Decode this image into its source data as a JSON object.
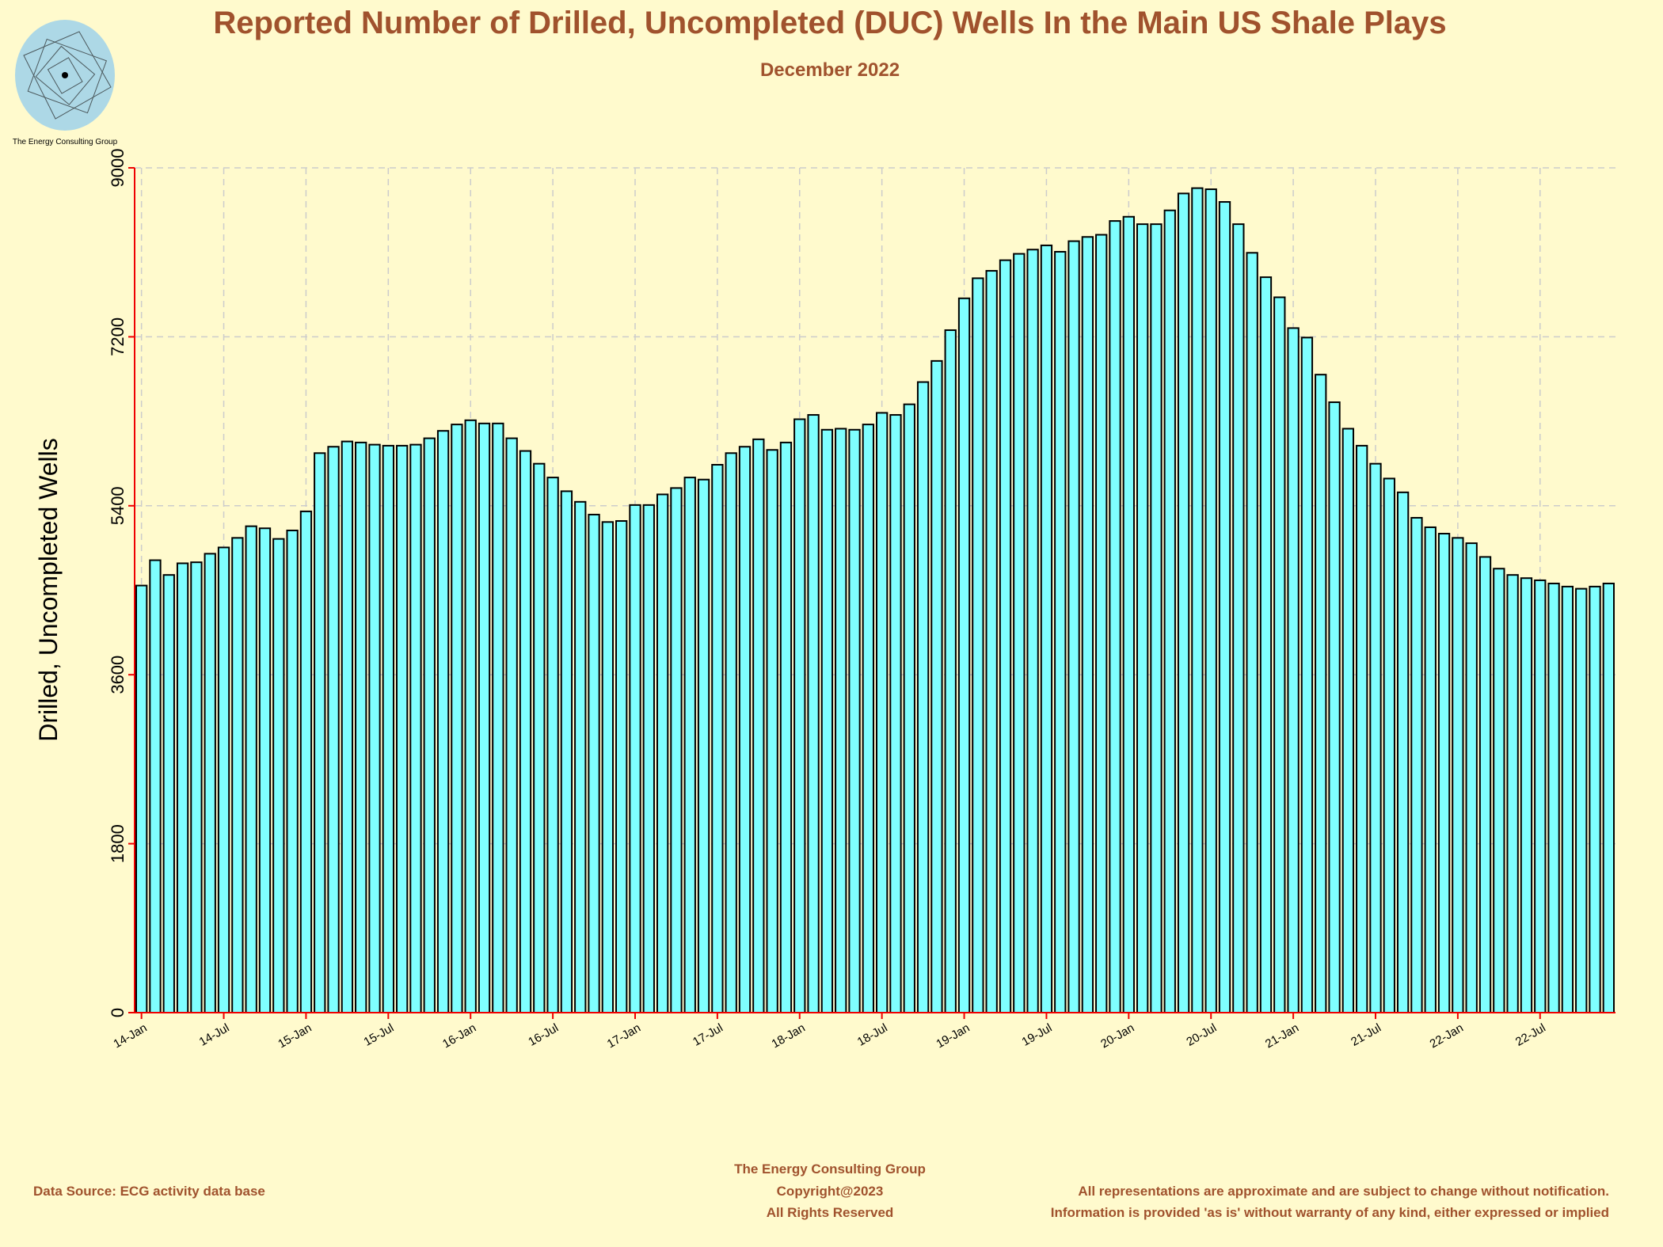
{
  "chart_data": {
    "type": "bar",
    "title": "Reported Number of Drilled, Uncompleted (DUC) Wells In the Main US Shale Plays",
    "subtitle": "December 2022",
    "xlabel": "",
    "ylabel": "Drilled, Uncompleted Wells",
    "ylim": [
      0,
      9000
    ],
    "yticks": [
      "0",
      "1800",
      "3600",
      "5400",
      "7200",
      "9000"
    ],
    "xtick_labels": [
      "14-Jan",
      "14-Jul",
      "15-Jan",
      "15-Jul",
      "16-Jan",
      "16-Jul",
      "17-Jan",
      "17-Jul",
      "18-Jan",
      "18-Jul",
      "19-Jan",
      "19-Jul",
      "20-Jan",
      "20-Jul",
      "21-Jan",
      "21-Jul",
      "22-Jan",
      "22-Jul"
    ],
    "grid": true,
    "bar_color": "#7fffff",
    "values": [
      4550,
      4820,
      4663,
      4787,
      4798,
      4889,
      4956,
      5058,
      5182,
      5160,
      5047,
      5137,
      5340,
      5961,
      6029,
      6085,
      6074,
      6051,
      6040,
      6040,
      6051,
      6119,
      6198,
      6266,
      6311,
      6277,
      6277,
      6119,
      5984,
      5848,
      5701,
      5555,
      5442,
      5306,
      5227,
      5238,
      5408,
      5408,
      5521,
      5589,
      5701,
      5679,
      5837,
      5961,
      6029,
      6108,
      5995,
      6074,
      6322,
      6368,
      6210,
      6221,
      6210,
      6266,
      6390,
      6368,
      6481,
      6718,
      6943,
      7271,
      7610,
      7824,
      7903,
      8016,
      8084,
      8129,
      8174,
      8106,
      8219,
      8264,
      8287,
      8434,
      8479,
      8400,
      8400,
      8547,
      8727,
      8784,
      8772,
      8637,
      8400,
      8095,
      7835,
      7621,
      7293,
      7192,
      6797,
      6503,
      6221,
      6040,
      5848,
      5690,
      5543,
      5272,
      5171,
      5103,
      5058,
      5001,
      4855,
      4730,
      4663,
      4629,
      4606,
      4572,
      4539,
      4516,
      4539,
      4572
    ]
  },
  "logo": {
    "caption": "The Energy Consulting Group"
  },
  "footer": {
    "company": "The Energy Consulting Group",
    "source": "Data Source: ECG activity data base",
    "copyright": "Copyright@2023",
    "rights": "All Rights Reserved",
    "disclaimer1": "All representations are approximate and are subject to change without notification.",
    "disclaimer2": "Information is provided 'as is' without warranty of any kind, either expressed or implied"
  }
}
